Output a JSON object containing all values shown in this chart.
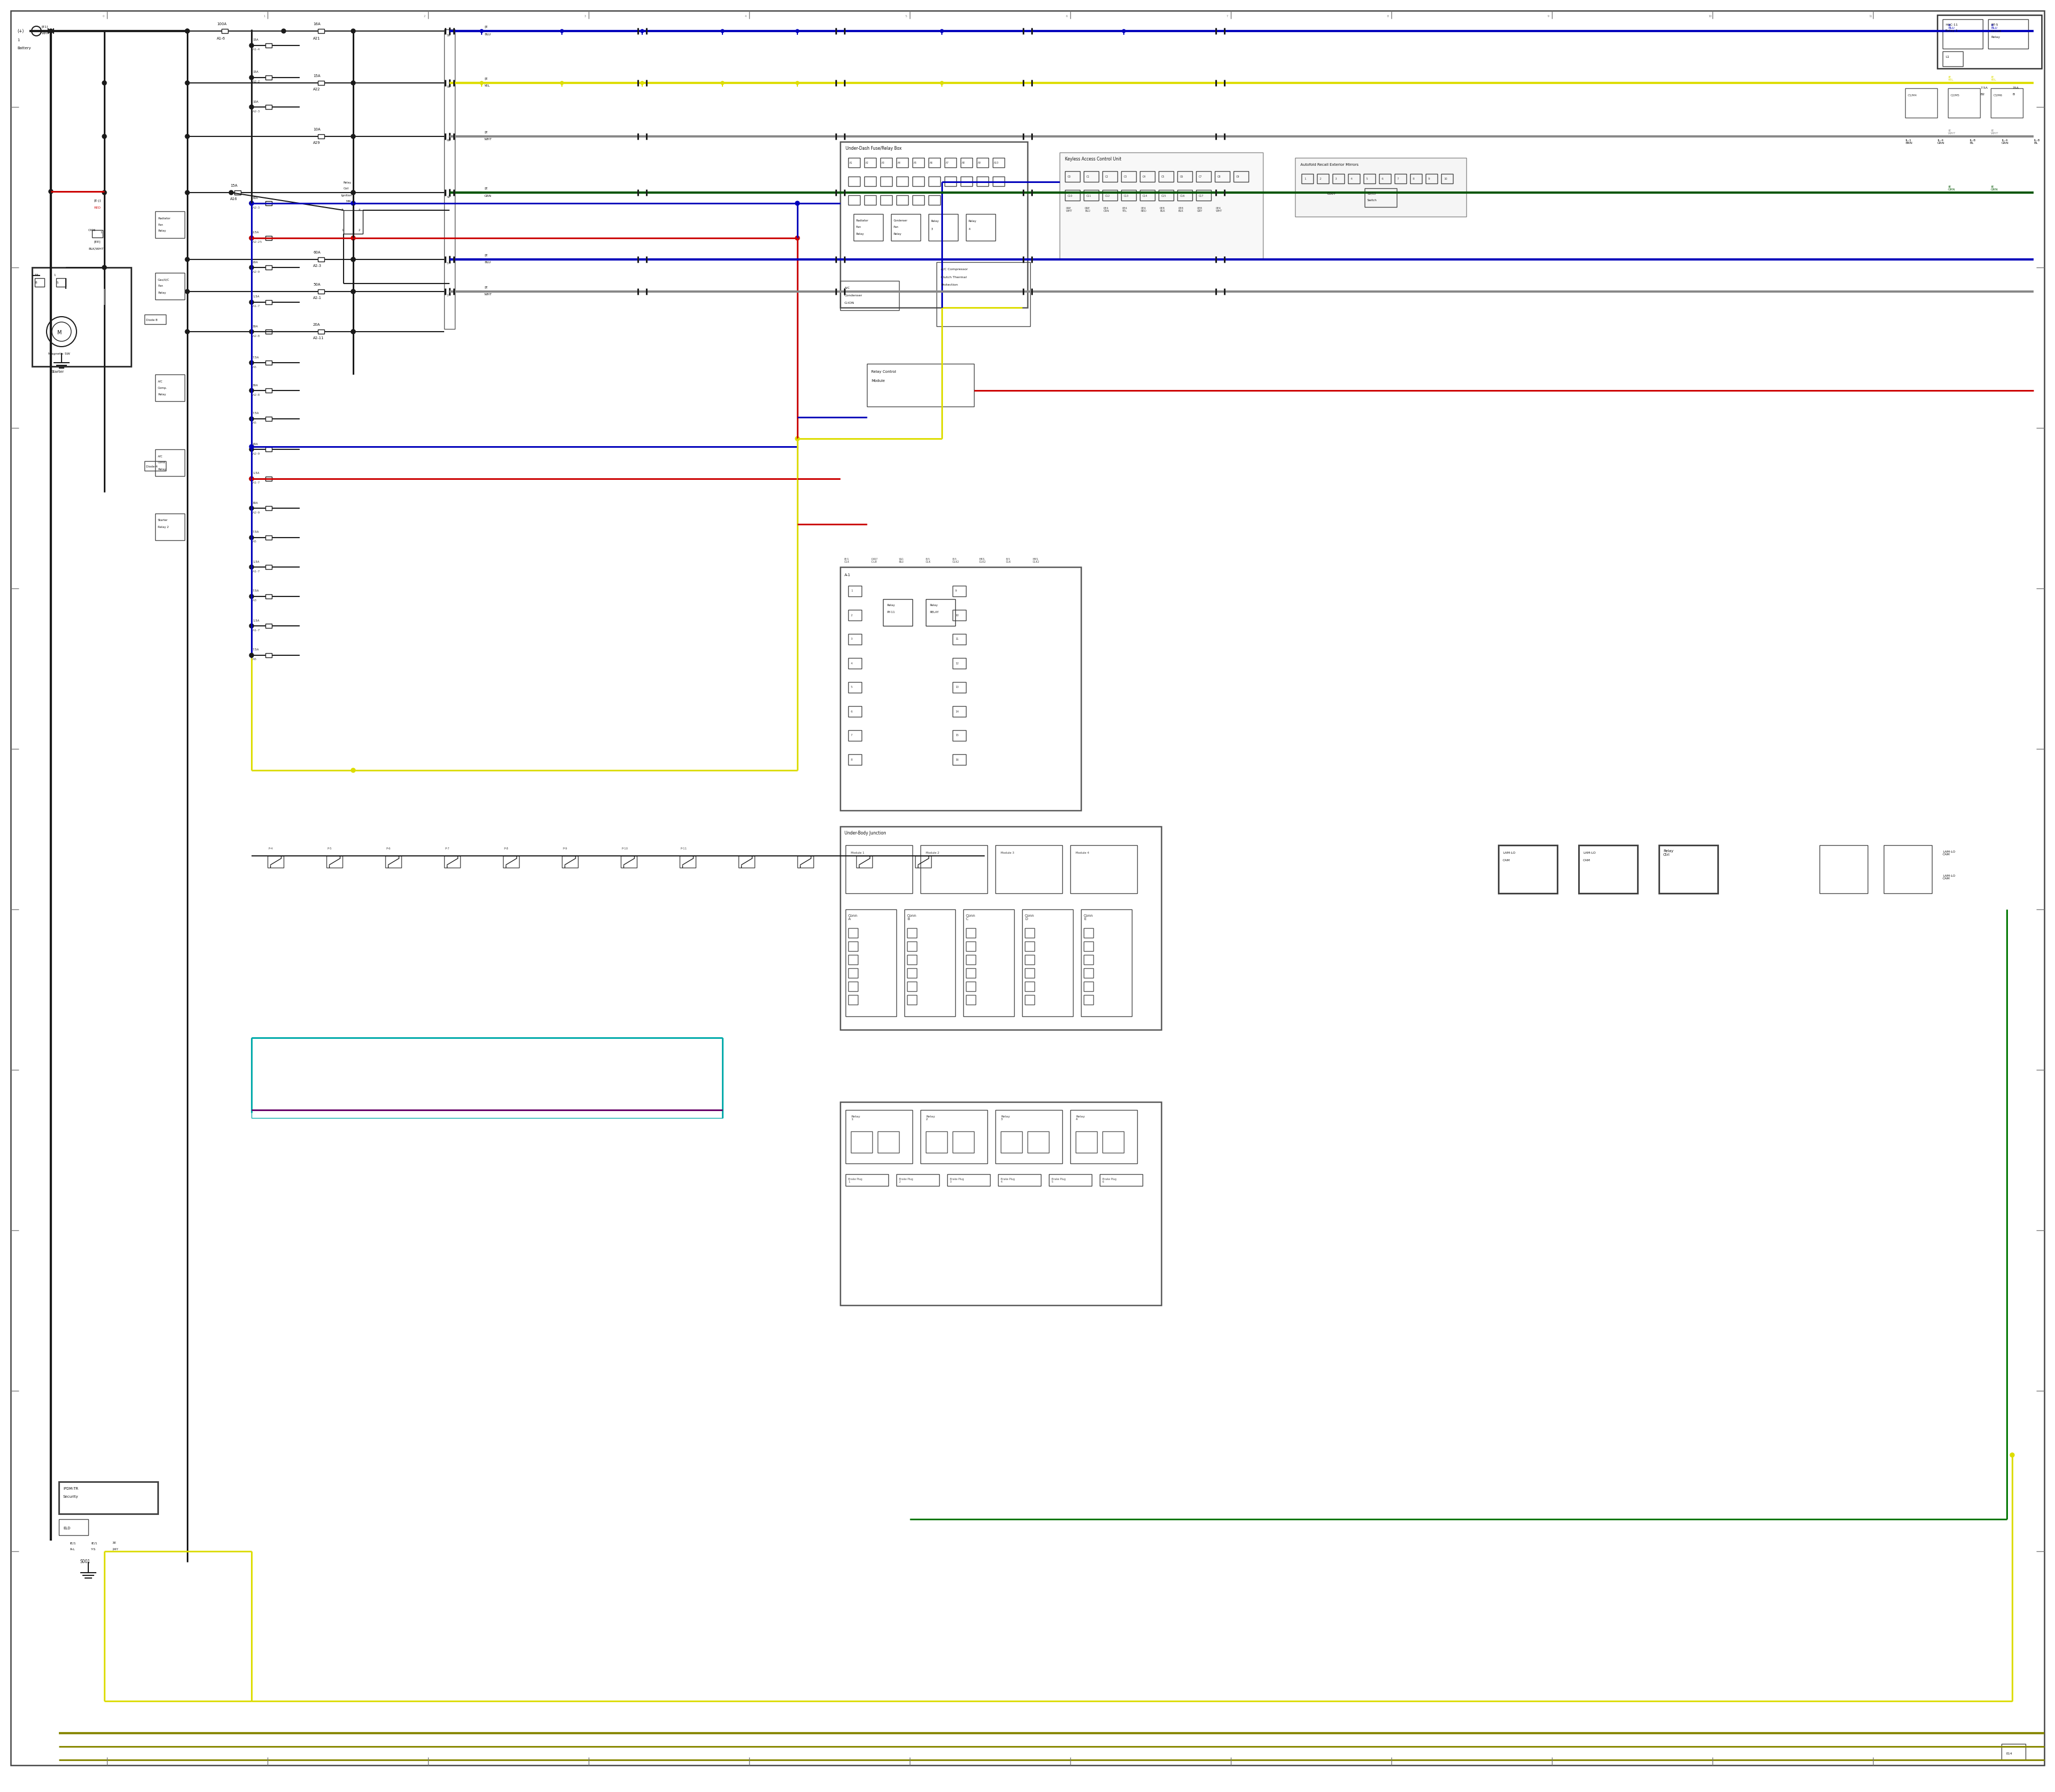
{
  "bg_color": "#ffffff",
  "fig_width": 38.4,
  "fig_height": 33.5,
  "wire_colors": {
    "black": "#1a1a1a",
    "red": "#cc0000",
    "blue": "#0000bb",
    "yellow": "#dddd00",
    "green": "#007700",
    "gray": "#888888",
    "cyan": "#00aaaa",
    "purple": "#660066",
    "dark_green": "#005500",
    "olive": "#888800"
  },
  "lw": {
    "main": 2.2,
    "wire": 1.5,
    "thick": 3.0,
    "thin": 1.0,
    "border": 1.8
  }
}
